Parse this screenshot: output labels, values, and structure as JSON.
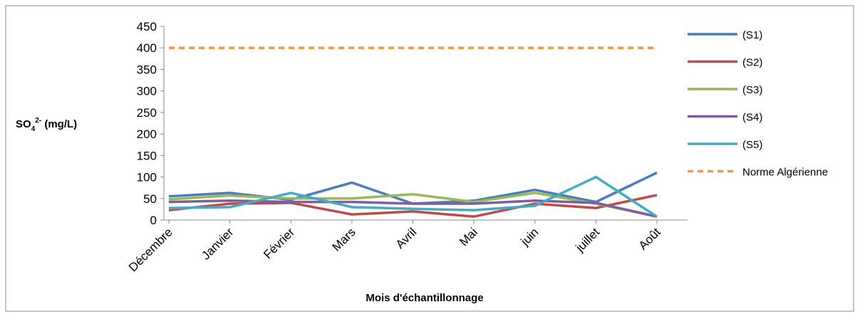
{
  "chart_data": {
    "type": "line",
    "y_label": {
      "base": "SO",
      "sub": "4",
      "sup": "2-",
      "unit": " (mg/L)"
    },
    "x_label": "Mois d'échantillonnage",
    "categories": [
      "Décembre",
      "Janvier",
      "Février",
      "Mars",
      "Avril",
      "Mai",
      "juin",
      "juillet",
      "Août"
    ],
    "series": [
      {
        "name": "(S1)",
        "color": "#4a7ebb",
        "values": [
          55,
          63,
          47,
          87,
          38,
          45,
          70,
          42,
          110
        ]
      },
      {
        "name": "(S2)",
        "color": "#be4b48",
        "values": [
          23,
          38,
          40,
          13,
          20,
          8,
          38,
          28,
          58
        ]
      },
      {
        "name": "(S3)",
        "color": "#98b954",
        "values": [
          48,
          57,
          50,
          50,
          60,
          42,
          63,
          38,
          8
        ]
      },
      {
        "name": "(S4)",
        "color": "#7d5fa0",
        "values": [
          42,
          45,
          42,
          42,
          38,
          38,
          45,
          40,
          8
        ]
      },
      {
        "name": "(S5)",
        "color": "#46aac5",
        "values": [
          28,
          30,
          63,
          30,
          26,
          23,
          33,
          100,
          8
        ]
      },
      {
        "name": "Norme Algérienne",
        "color": "#f79646",
        "dashed": true,
        "values": [
          400,
          400,
          400,
          400,
          400,
          400,
          400,
          400,
          400
        ]
      }
    ],
    "ylim": [
      0,
      450
    ],
    "yticks": [
      0,
      50,
      100,
      150,
      200,
      250,
      300,
      350,
      400,
      450
    ],
    "legend": "right"
  }
}
